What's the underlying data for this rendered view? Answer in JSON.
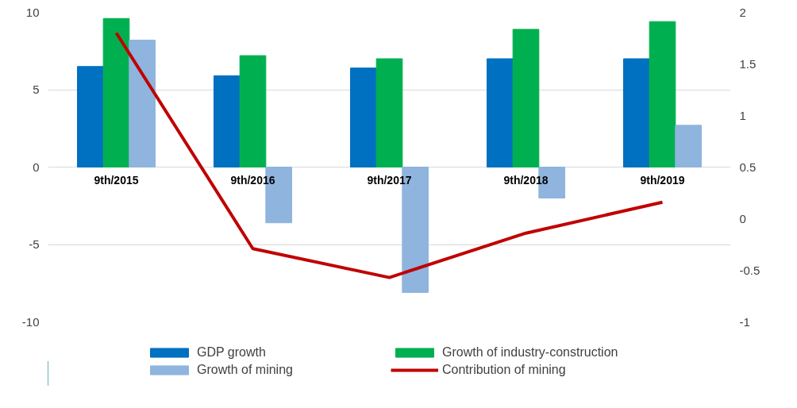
{
  "chart_data": {
    "type": "bar",
    "categories": [
      "9th/2015",
      "9th/2016",
      "9th/2017",
      "9th/2018",
      "9th/2019"
    ],
    "series": [
      {
        "name": "GDP growth",
        "color": "#0070c0",
        "values": [
          6.5,
          5.9,
          6.4,
          7.0,
          7.0
        ]
      },
      {
        "name": "Growth of industry-construction",
        "color": "#00b050",
        "values": [
          9.6,
          7.2,
          7.0,
          8.9,
          9.4
        ]
      },
      {
        "name": "Growth of mining",
        "color": "#8fb4de",
        "values": [
          8.2,
          -3.6,
          -8.1,
          -2.0,
          2.7
        ]
      },
      {
        "name": "Contribution of mining",
        "type": "line",
        "axis": "y2",
        "color": "#c00000",
        "values": [
          1.8,
          -0.29,
          -0.57,
          -0.14,
          0.16
        ]
      }
    ],
    "ylim": [
      -10,
      10
    ],
    "yticks": [
      -10,
      -5,
      0,
      5,
      10
    ],
    "y2lim": [
      -1,
      2
    ],
    "y2ticks": [
      -1,
      -0.5,
      0,
      0.5,
      1,
      1.5,
      2
    ],
    "grid": "y",
    "legend": "bottom",
    "marker": "none",
    "line_style": "solid"
  }
}
